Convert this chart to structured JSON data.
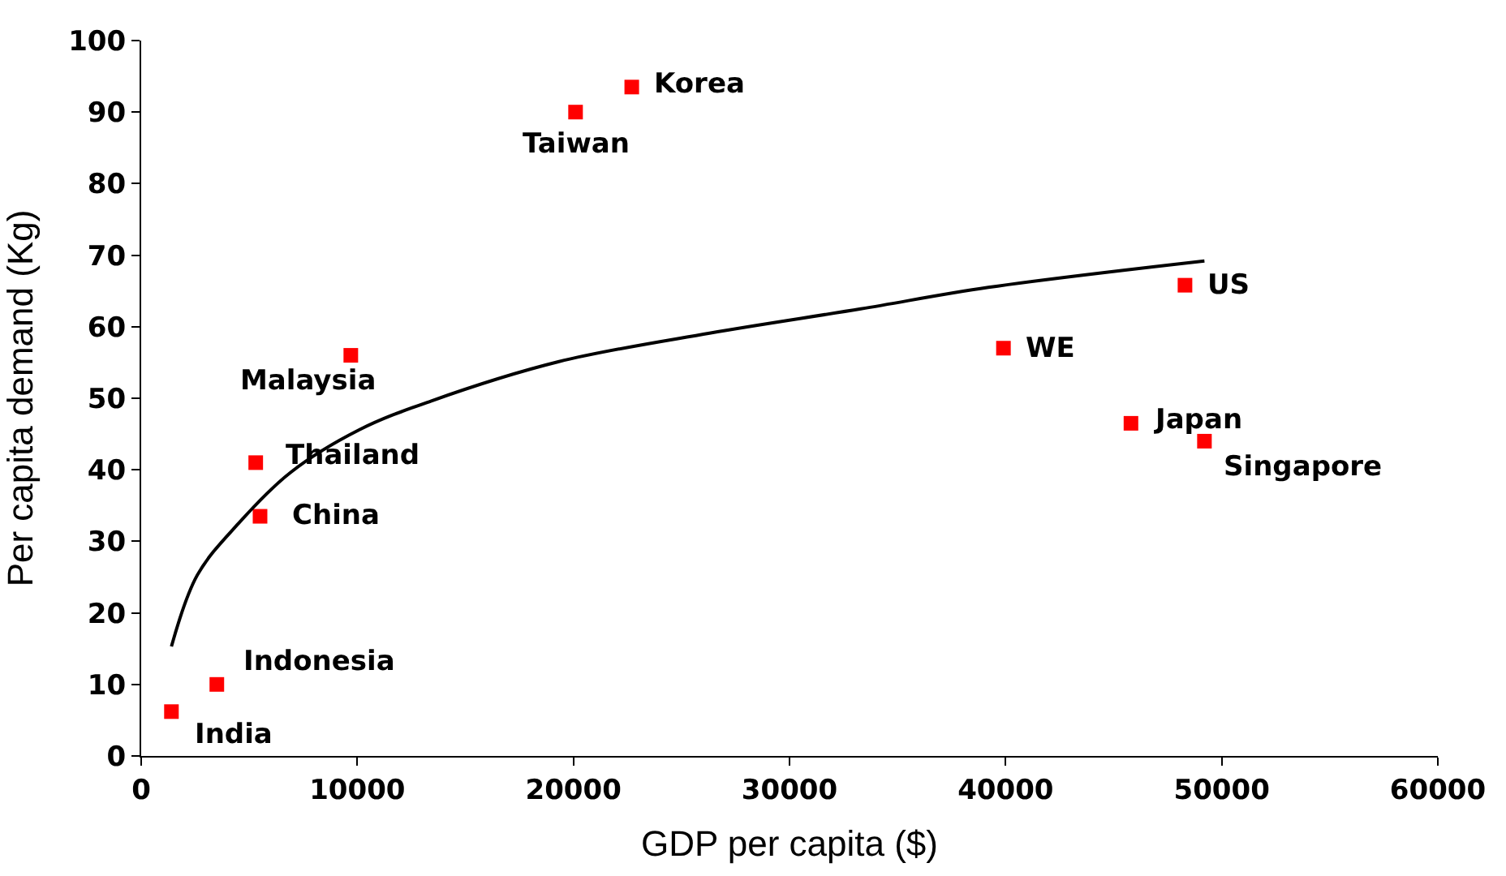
{
  "chart_data": {
    "type": "scatter",
    "xlabel": "GDP per capita ($)",
    "ylabel": "Per capita demand (Kg)",
    "xlim": [
      0,
      60000
    ],
    "ylim": [
      0,
      100
    ],
    "xticks": [
      0,
      10000,
      20000,
      30000,
      40000,
      50000,
      60000
    ],
    "yticks": [
      0,
      10,
      20,
      30,
      40,
      50,
      60,
      70,
      80,
      90,
      100
    ],
    "marker": "square",
    "series": [
      {
        "color": "#ff0000",
        "x": [
          1400,
          3500,
          5300,
          5500,
          9700,
          20100,
          22700,
          39900,
          45800,
          48300,
          49200
        ],
        "values": [
          6.2,
          10,
          41,
          33.5,
          56,
          90,
          93.5,
          57,
          46.5,
          65.8,
          44
        ]
      },
      {
        "type": "line",
        "color": "#000000",
        "marker": "none",
        "line_style": "solid",
        "x": [
          1400,
          2600,
          4500,
          6900,
          10100,
          13400,
          19300,
          26300,
          33300,
          39200,
          49200
        ],
        "values": [
          15.3,
          25.3,
          32.5,
          39.6,
          45.6,
          49.6,
          55.1,
          59.1,
          62.5,
          65.5,
          69.2
        ]
      }
    ],
    "annotations": [
      {
        "text": "India",
        "x": 1400,
        "y": 6.2
      },
      {
        "text": "Indonesia",
        "x": 3500,
        "y": 10
      },
      {
        "text": "Thailand",
        "x": 5300,
        "y": 41
      },
      {
        "text": "China",
        "x": 5500,
        "y": 33.5
      },
      {
        "text": "Malaysia",
        "x": 9700,
        "y": 56
      },
      {
        "text": "Taiwan",
        "x": 20100,
        "y": 90
      },
      {
        "text": "Korea",
        "x": 22700,
        "y": 93.5
      },
      {
        "text": "WE",
        "x": 39900,
        "y": 57
      },
      {
        "text": "Japan",
        "x": 45800,
        "y": 46.5
      },
      {
        "text": "US",
        "x": 48300,
        "y": 65.8
      },
      {
        "text": "Singapore",
        "x": 49200,
        "y": 44
      }
    ]
  }
}
